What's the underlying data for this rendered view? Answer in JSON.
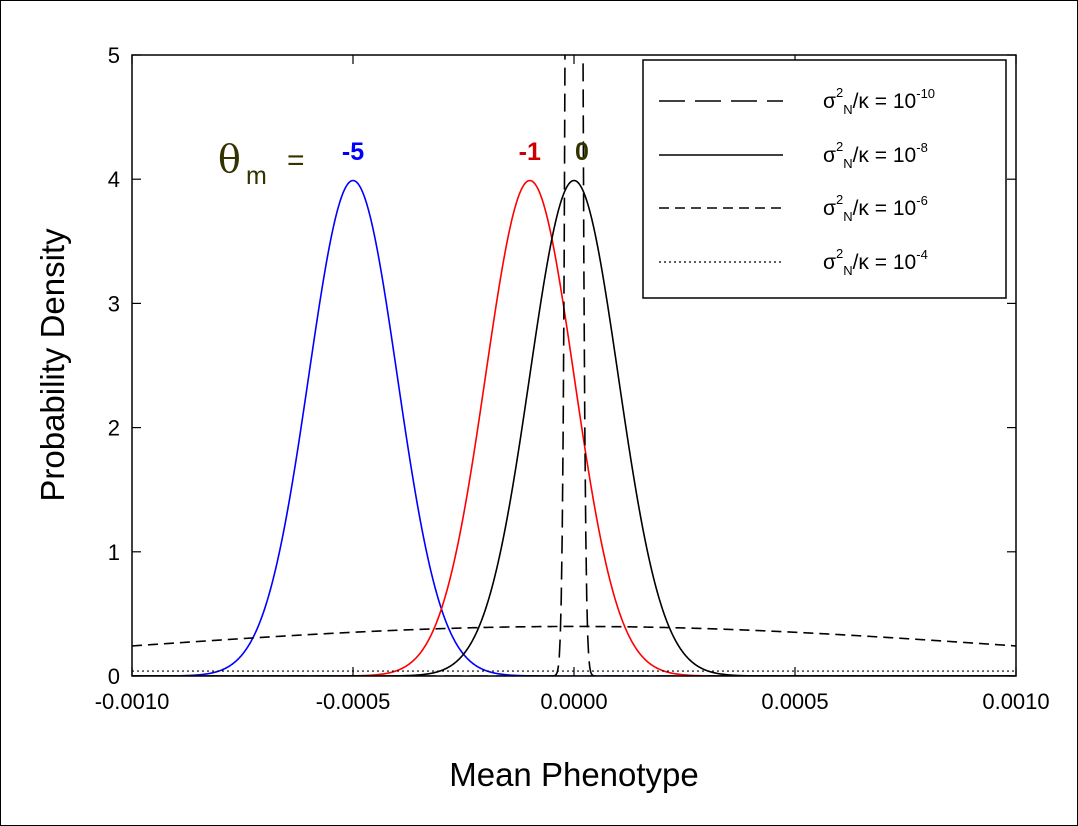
{
  "chart_data": {
    "type": "line",
    "xlabel": "Mean Phenotype",
    "ylabel": "Probability Density",
    "xlim": [
      -0.001,
      0.001
    ],
    "ylim": [
      0,
      5
    ],
    "x_ticks": [
      "-0.0010",
      "-0.0005",
      "0.0000",
      "0.0005",
      "0.0010"
    ],
    "x_tick_values": [
      -0.001,
      -0.0005,
      0,
      0.0005,
      0.001
    ],
    "y_ticks": [
      "0",
      "1",
      "2",
      "3",
      "4",
      "5"
    ],
    "y_tick_values": [
      0,
      1,
      2,
      3,
      4,
      5
    ],
    "grid": false,
    "legend_position": "top-right",
    "legend": [
      {
        "label": "σ",
        "sup": "2",
        "sub": "N",
        "mid": "/κ = 10",
        "exp": "-10",
        "style": "long-dash"
      },
      {
        "label": "σ",
        "sup": "2",
        "sub": "N",
        "mid": "/κ = 10",
        "exp": "-8",
        "style": "solid"
      },
      {
        "label": "σ",
        "sup": "2",
        "sub": "N",
        "mid": "/κ = 10",
        "exp": "-6",
        "style": "dash"
      },
      {
        "label": "σ",
        "sup": "2",
        "sub": "N",
        "mid": "/κ = 10",
        "exp": "-4",
        "style": "dot"
      }
    ],
    "series": [
      {
        "kind": "gaussian",
        "mean": -0.0005,
        "sd": 0.0001,
        "color": "#0000ff",
        "style": "solid",
        "group": "theta_m = -5"
      },
      {
        "kind": "gaussian",
        "mean": -0.0001,
        "sd": 0.0001,
        "color": "#ff0000",
        "style": "solid",
        "group": "theta_m = -1"
      },
      {
        "kind": "gaussian",
        "mean": 0.0,
        "sd": 0.0001,
        "color": "#000000",
        "style": "solid",
        "group": "theta_m = 0"
      },
      {
        "kind": "gaussian",
        "mean": 0.0,
        "sd": 1e-05,
        "color": "#000000",
        "style": "long-dash",
        "group": "theta_m = 0"
      },
      {
        "kind": "gaussian",
        "mean": 0.0,
        "sd": 0.001,
        "color": "#000000",
        "style": "dash",
        "group": "theta_m = 0"
      },
      {
        "kind": "gaussian",
        "mean": 0.0,
        "sd": 0.01,
        "color": "#000000",
        "style": "dot",
        "group": "theta_m = 0"
      }
    ],
    "annotations": {
      "theta_symbol": "θ",
      "theta_subscript": "m",
      "equals": "=",
      "labels": [
        {
          "text": "-5",
          "color": "#0000ff",
          "x": -0.0005
        },
        {
          "text": "-1",
          "color": "#cc0000",
          "x": -0.0001
        },
        {
          "text": "0",
          "color": "#333300",
          "x": 0.0
        }
      ]
    }
  }
}
